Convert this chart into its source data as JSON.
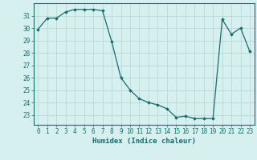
{
  "x": [
    0,
    1,
    2,
    3,
    4,
    5,
    6,
    7,
    8,
    9,
    10,
    11,
    12,
    13,
    14,
    15,
    16,
    17,
    18,
    19,
    20,
    21,
    22,
    23
  ],
  "y": [
    29.9,
    30.8,
    30.8,
    31.3,
    31.5,
    31.5,
    31.5,
    31.4,
    28.9,
    26.0,
    25.0,
    24.3,
    24.0,
    23.8,
    23.5,
    22.8,
    22.9,
    22.7,
    22.7,
    22.7,
    30.7,
    29.5,
    30.0,
    28.1
  ],
  "line_color": "#1a6b6b",
  "marker": "D",
  "marker_size": 1.8,
  "bg_color": "#d6f0f0",
  "grid_color": "#b8d8d8",
  "xlabel": "Humidex (Indice chaleur)",
  "xlabel_fontsize": 6.5,
  "tick_fontsize": 5.5,
  "ylim": [
    22.2,
    32.0
  ],
  "xlim": [
    -0.5,
    23.5
  ],
  "yticks": [
    23,
    24,
    25,
    26,
    27,
    28,
    29,
    30,
    31
  ],
  "xticks": [
    0,
    1,
    2,
    3,
    4,
    5,
    6,
    7,
    8,
    9,
    10,
    11,
    12,
    13,
    14,
    15,
    16,
    17,
    18,
    19,
    20,
    21,
    22,
    23
  ],
  "tick_color": "#1a6b6b",
  "label_color": "#1a6b6b",
  "spine_color": "#1a6b6b"
}
